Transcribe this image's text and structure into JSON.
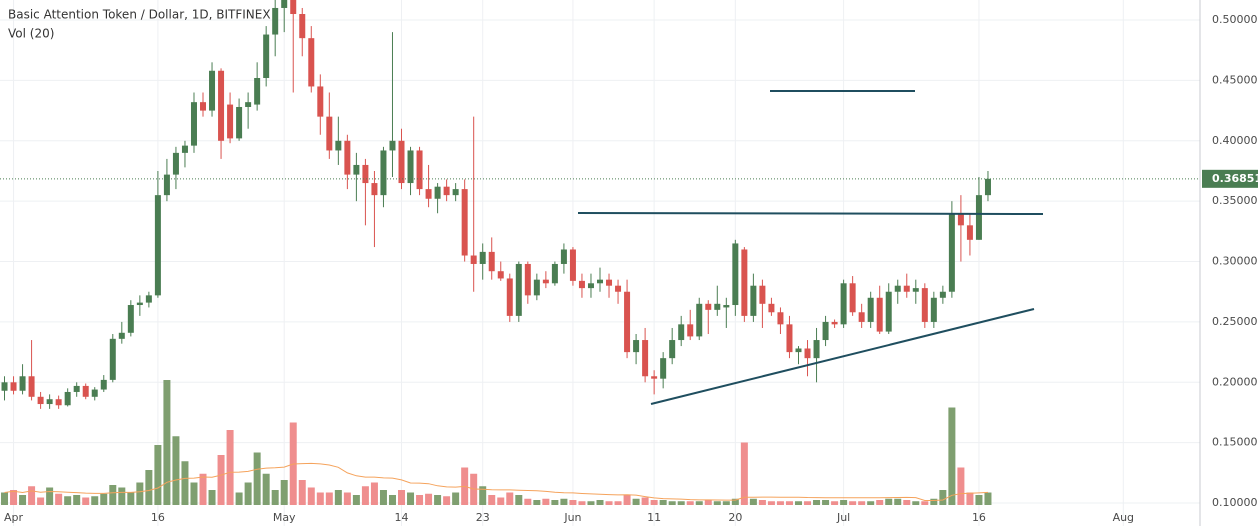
{
  "chart_data": {
    "type": "candlestick",
    "title": "Basic Attention Token / Dollar, 1D, BITFINEX",
    "volume_label": "Vol (20)",
    "volume_ma_period": 20,
    "up_color": "#4a7d52",
    "down_color": "#d9534f",
    "volume_up_color": "#7f9f70",
    "volume_down_color": "#ef8e8e",
    "volume_ma_color": "#f5a35c",
    "last_price": 0.36851,
    "grid": true,
    "xlim": [
      -1.5,
      131.5
    ],
    "xticks": [
      {
        "value": 0,
        "label": "Apr"
      },
      16,
      {
        "value": 30,
        "label": "May"
      },
      {
        "value": 43,
        "label": "14"
      },
      {
        "value": 52,
        "label": "23"
      },
      {
        "value": 62,
        "label": "Jun"
      },
      {
        "value": 71,
        "label": "11"
      },
      {
        "value": 80,
        "label": "20"
      },
      {
        "value": 92,
        "label": "Jul"
      },
      {
        "value": 107,
        "label": "16"
      },
      {
        "value": 123,
        "label": "Aug"
      }
    ],
    "ylim": [
      0.081,
      0.5166
    ],
    "yticks": [
      {
        "value": 0.1,
        "label": "0.10000"
      },
      {
        "value": 0.15,
        "label": "0.15000"
      },
      {
        "value": 0.2,
        "label": "0.20000"
      },
      {
        "value": 0.25,
        "label": "0.25000"
      },
      {
        "value": 0.3,
        "label": "0.30000"
      },
      {
        "value": 0.35,
        "label": "0.35000"
      },
      {
        "value": 0.4,
        "label": "0.40000"
      },
      {
        "value": 0.45,
        "label": "0.45000"
      },
      {
        "value": 0.5,
        "label": "0.50000"
      }
    ],
    "vlim": [
      0,
      100
    ],
    "x": [
      -1,
      0,
      1,
      2,
      3,
      4,
      5,
      6,
      7,
      8,
      9,
      10,
      11,
      12,
      13,
      14,
      15,
      16,
      17,
      18,
      19,
      20,
      21,
      22,
      23,
      24,
      25,
      26,
      27,
      28,
      29,
      30,
      31,
      32,
      33,
      34,
      35,
      36,
      37,
      38,
      39,
      40,
      41,
      42,
      43,
      44,
      45,
      46,
      47,
      48,
      49,
      50,
      51,
      52,
      53,
      54,
      55,
      56,
      57,
      58,
      59,
      60,
      61,
      62,
      63,
      64,
      65,
      66,
      67,
      68,
      69,
      70,
      71,
      72,
      73,
      74,
      75,
      76,
      77,
      78,
      79,
      80,
      81,
      82,
      83,
      84,
      85,
      86,
      87,
      88,
      89,
      90,
      91,
      92,
      93,
      94,
      95,
      96,
      97,
      98,
      99,
      100,
      101,
      102,
      103,
      104,
      105,
      106,
      107,
      108
    ],
    "open": [
      0.193,
      0.2,
      0.193,
      0.205,
      0.188,
      0.182,
      0.186,
      0.181,
      0.192,
      0.197,
      0.188,
      0.194,
      0.202,
      0.236,
      0.241,
      0.264,
      0.266,
      0.272,
      0.355,
      0.372,
      0.39,
      0.396,
      0.432,
      0.425,
      0.458,
      0.43,
      0.402,
      0.428,
      0.43,
      0.452,
      0.488,
      0.51,
      0.52,
      0.505,
      0.485,
      0.445,
      0.42,
      0.392,
      0.4,
      0.372,
      0.38,
      0.365,
      0.355,
      0.392,
      0.4,
      0.365,
      0.392,
      0.36,
      0.352,
      0.362,
      0.355,
      0.36,
      0.305,
      0.298,
      0.308,
      0.292,
      0.286,
      0.255,
      0.298,
      0.272,
      0.285,
      0.282,
      0.298,
      0.31,
      0.284,
      0.278,
      0.282,
      0.285,
      0.28,
      0.275,
      0.225,
      0.235,
      0.205,
      0.203,
      0.22,
      0.235,
      0.248,
      0.238,
      0.265,
      0.26,
      0.262,
      0.264,
      0.31,
      0.255,
      0.28,
      0.265,
      0.258,
      0.248,
      0.225,
      0.228,
      0.22,
      0.235,
      0.25,
      0.248,
      0.282,
      0.258,
      0.25,
      0.27,
      0.242,
      0.275,
      0.28,
      0.275,
      0.278,
      0.25,
      0.27,
      0.275,
      0.34,
      0.33,
      0.318,
      0.355
    ],
    "high": [
      0.205,
      0.205,
      0.215,
      0.235,
      0.192,
      0.19,
      0.189,
      0.195,
      0.2,
      0.199,
      0.196,
      0.206,
      0.24,
      0.25,
      0.268,
      0.272,
      0.275,
      0.375,
      0.385,
      0.395,
      0.4,
      0.44,
      0.44,
      0.465,
      0.46,
      0.44,
      0.435,
      0.44,
      0.465,
      0.495,
      0.52,
      0.525,
      0.525,
      0.51,
      0.495,
      0.455,
      0.44,
      0.42,
      0.405,
      0.39,
      0.385,
      0.375,
      0.395,
      0.49,
      0.41,
      0.395,
      0.395,
      0.38,
      0.365,
      0.368,
      0.365,
      0.368,
      0.42,
      0.315,
      0.32,
      0.3,
      0.29,
      0.3,
      0.3,
      0.29,
      0.292,
      0.3,
      0.315,
      0.312,
      0.29,
      0.29,
      0.295,
      0.29,
      0.285,
      0.285,
      0.24,
      0.245,
      0.21,
      0.225,
      0.245,
      0.255,
      0.26,
      0.27,
      0.268,
      0.28,
      0.27,
      0.318,
      0.312,
      0.29,
      0.285,
      0.27,
      0.262,
      0.255,
      0.23,
      0.235,
      0.245,
      0.255,
      0.252,
      0.285,
      0.288,
      0.265,
      0.275,
      0.28,
      0.282,
      0.285,
      0.29,
      0.285,
      0.282,
      0.275,
      0.28,
      0.35,
      0.355,
      0.34,
      0.37,
      0.375
    ],
    "low": [
      0.185,
      0.19,
      0.19,
      0.185,
      0.178,
      0.178,
      0.178,
      0.18,
      0.188,
      0.186,
      0.185,
      0.192,
      0.2,
      0.232,
      0.238,
      0.255,
      0.262,
      0.27,
      0.35,
      0.36,
      0.378,
      0.39,
      0.42,
      0.42,
      0.385,
      0.398,
      0.4,
      0.41,
      0.425,
      0.445,
      0.47,
      0.49,
      0.44,
      0.47,
      0.44,
      0.405,
      0.385,
      0.38,
      0.36,
      0.35,
      0.33,
      0.312,
      0.345,
      0.37,
      0.36,
      0.355,
      0.355,
      0.345,
      0.34,
      0.35,
      0.35,
      0.3,
      0.275,
      0.285,
      0.285,
      0.284,
      0.25,
      0.25,
      0.265,
      0.268,
      0.278,
      0.28,
      0.29,
      0.28,
      0.27,
      0.27,
      0.275,
      0.27,
      0.265,
      0.22,
      0.215,
      0.2,
      0.19,
      0.195,
      0.215,
      0.23,
      0.235,
      0.235,
      0.24,
      0.255,
      0.245,
      0.255,
      0.25,
      0.25,
      0.245,
      0.255,
      0.24,
      0.22,
      0.215,
      0.205,
      0.2,
      0.23,
      0.245,
      0.245,
      0.255,
      0.245,
      0.245,
      0.24,
      0.24,
      0.265,
      0.27,
      0.265,
      0.245,
      0.245,
      0.265,
      0.27,
      0.3,
      0.305,
      0.318,
      0.35
    ],
    "close": [
      0.2,
      0.193,
      0.205,
      0.188,
      0.182,
      0.186,
      0.181,
      0.192,
      0.197,
      0.188,
      0.194,
      0.202,
      0.236,
      0.241,
      0.264,
      0.266,
      0.272,
      0.355,
      0.372,
      0.39,
      0.396,
      0.432,
      0.425,
      0.458,
      0.4,
      0.402,
      0.428,
      0.432,
      0.452,
      0.488,
      0.51,
      0.52,
      0.505,
      0.485,
      0.445,
      0.42,
      0.392,
      0.4,
      0.372,
      0.38,
      0.365,
      0.355,
      0.392,
      0.4,
      0.365,
      0.392,
      0.36,
      0.352,
      0.362,
      0.355,
      0.36,
      0.305,
      0.298,
      0.308,
      0.292,
      0.286,
      0.255,
      0.298,
      0.272,
      0.285,
      0.282,
      0.298,
      0.31,
      0.284,
      0.278,
      0.282,
      0.285,
      0.28,
      0.275,
      0.225,
      0.235,
      0.205,
      0.203,
      0.22,
      0.235,
      0.248,
      0.238,
      0.265,
      0.26,
      0.265,
      0.264,
      0.315,
      0.255,
      0.28,
      0.265,
      0.258,
      0.248,
      0.225,
      0.228,
      0.22,
      0.235,
      0.25,
      0.248,
      0.282,
      0.258,
      0.25,
      0.27,
      0.242,
      0.275,
      0.28,
      0.275,
      0.278,
      0.25,
      0.27,
      0.275,
      0.34,
      0.33,
      0.318,
      0.355,
      0.36851
    ],
    "volume": [
      10,
      12,
      8,
      15,
      6,
      14,
      9,
      7,
      8,
      6,
      7,
      9,
      16,
      14,
      10,
      18,
      28,
      48,
      100,
      55,
      35,
      18,
      25,
      12,
      40,
      60,
      10,
      18,
      42,
      25,
      12,
      20,
      66,
      20,
      14,
      10,
      10,
      12,
      10,
      8,
      15,
      18,
      12,
      8,
      12,
      10,
      8,
      9,
      8,
      7,
      10,
      30,
      25,
      15,
      8,
      6,
      10,
      8,
      5,
      4,
      5,
      4,
      5,
      4,
      3,
      3,
      4,
      3,
      3,
      8,
      5,
      6,
      4,
      4,
      3,
      3,
      3,
      3,
      4,
      3,
      3,
      5,
      50,
      5,
      4,
      3,
      3,
      3,
      3,
      3,
      4,
      4,
      3,
      4,
      3,
      3,
      3,
      4,
      5,
      5,
      4,
      3,
      3,
      5,
      12,
      78,
      30,
      10,
      8,
      10
    ]
  }
}
